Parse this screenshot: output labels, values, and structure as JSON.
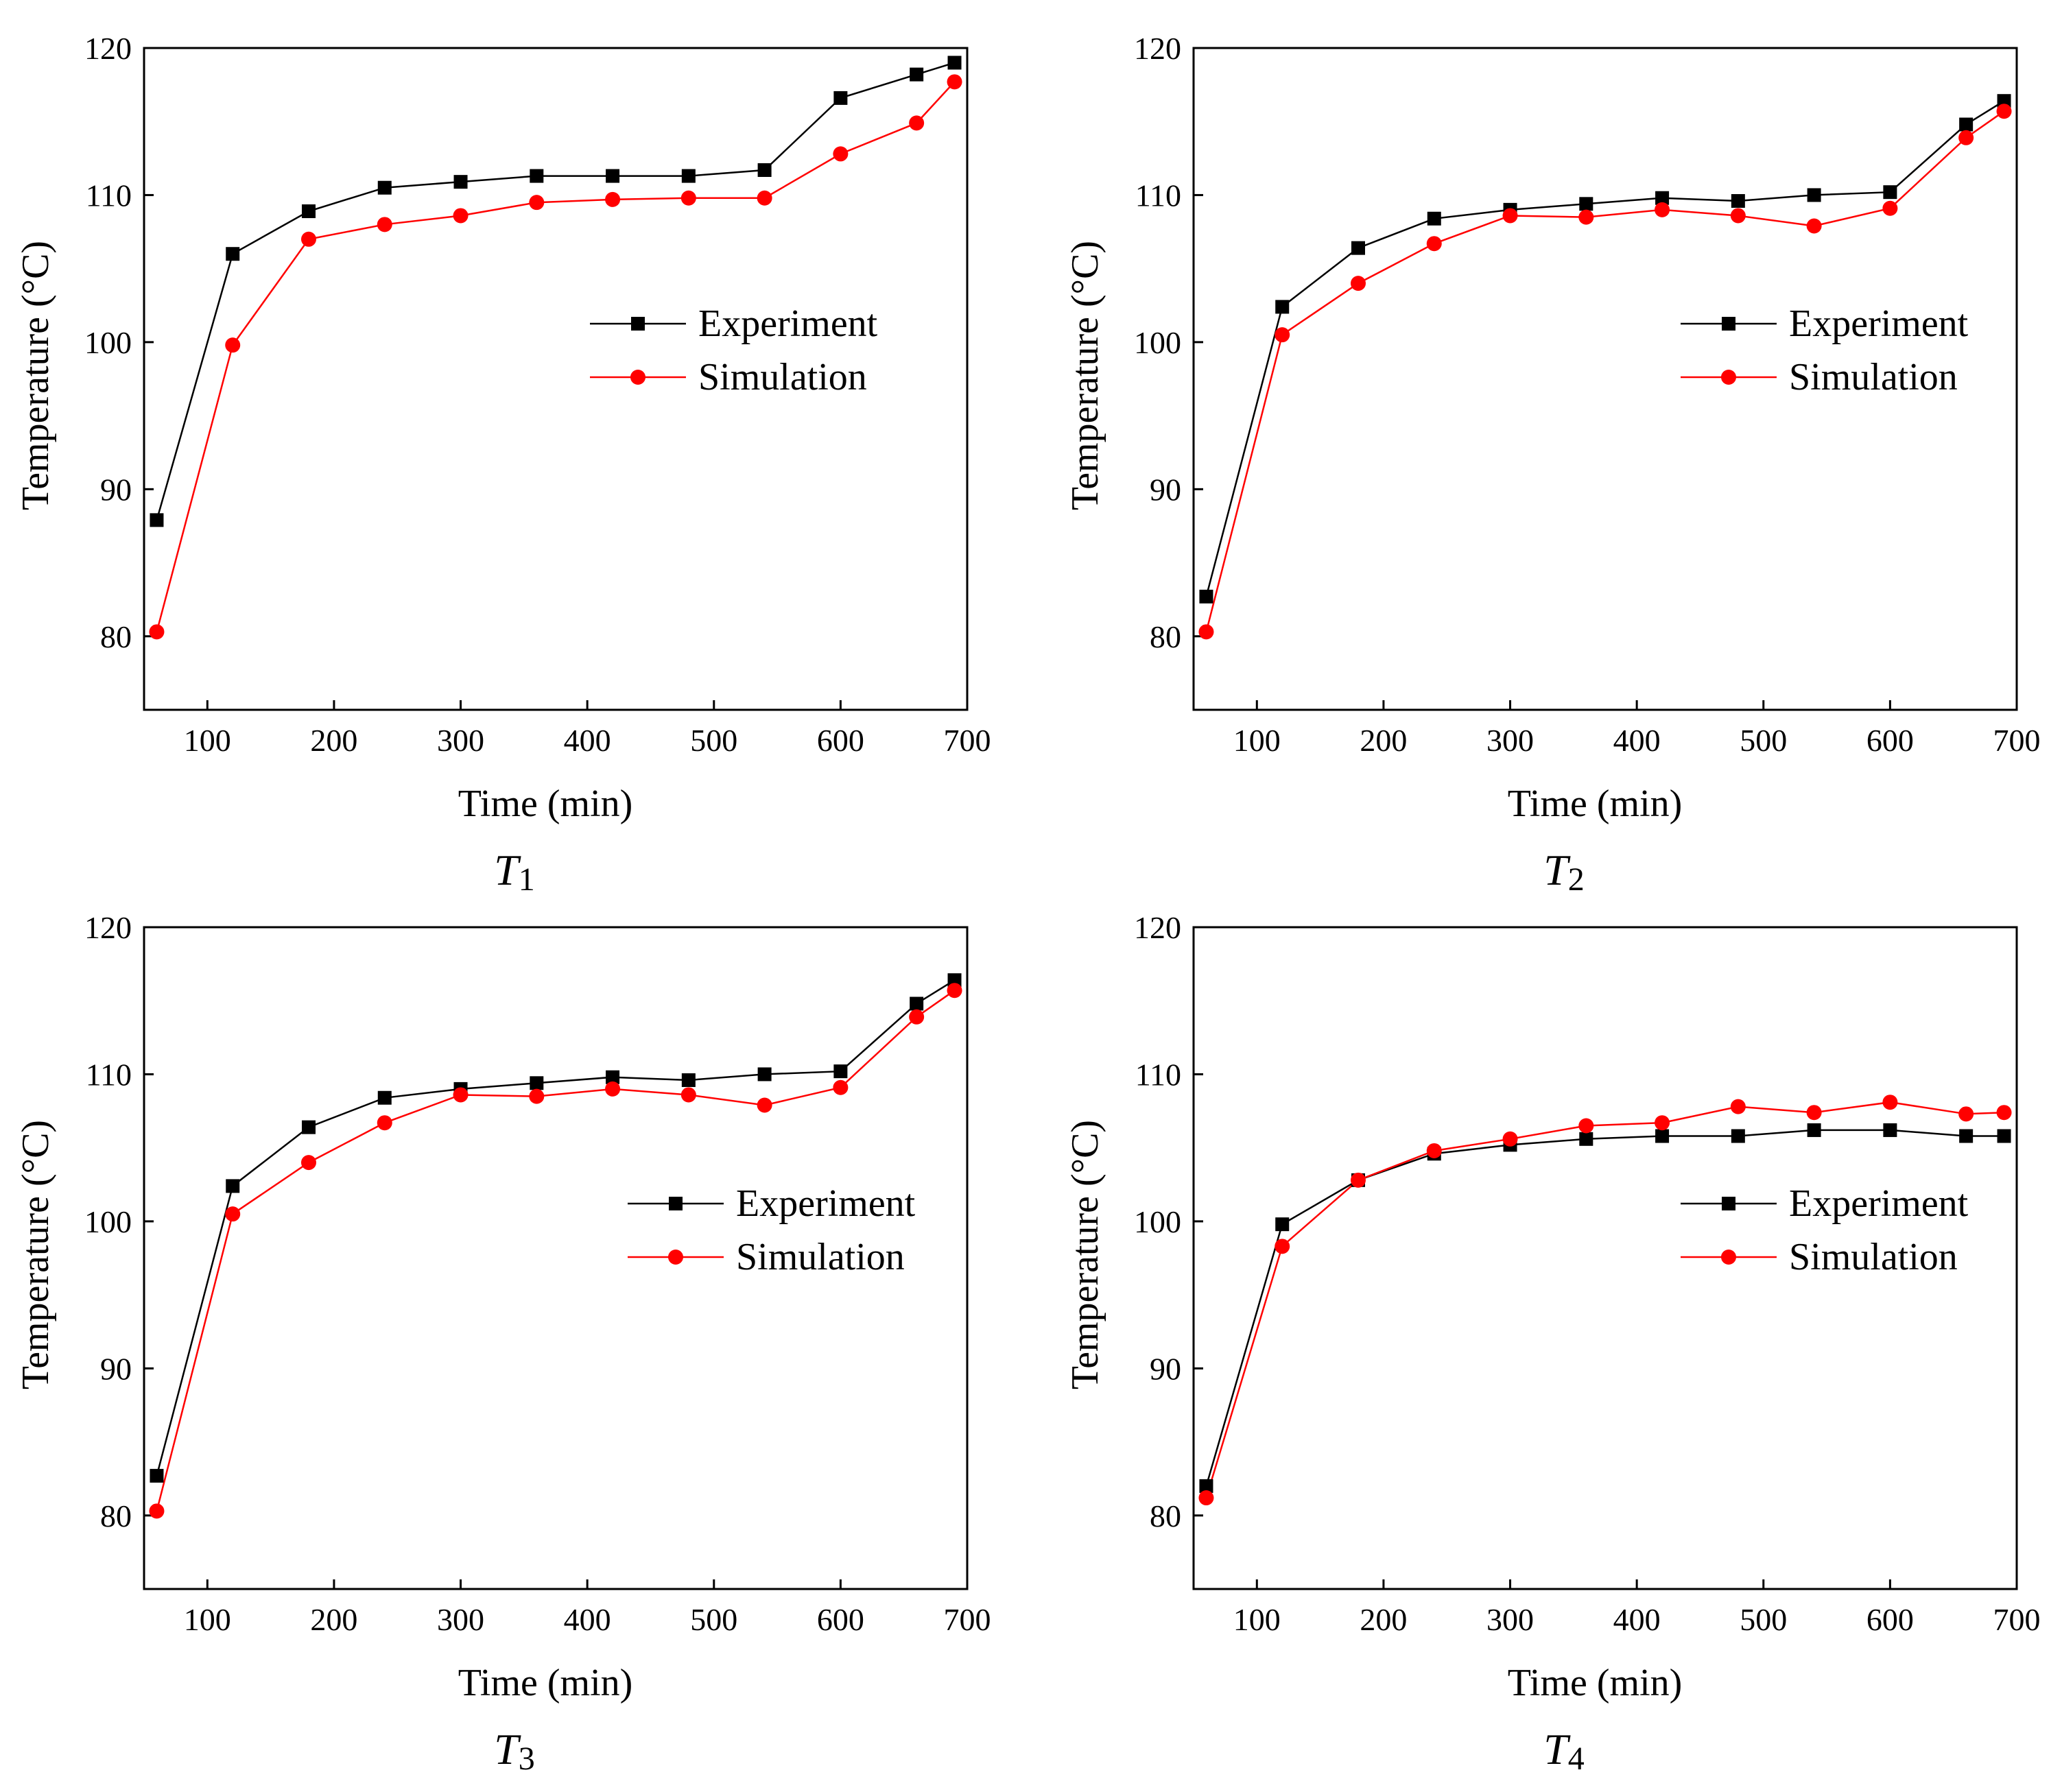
{
  "chart_data": [
    {
      "type": "line",
      "caption": {
        "letter": "T",
        "sub": "1"
      },
      "xlabel": "Time (min)",
      "ylabel": "Temperature (°C)",
      "xlim": [
        50,
        700
      ],
      "ylim": [
        75,
        120
      ],
      "xticks": [
        "100",
        "200",
        "300",
        "400",
        "500",
        "600",
        "700"
      ],
      "yticks": [
        "80",
        "90",
        "100",
        "110",
        "120"
      ],
      "legend_position": "center-right",
      "x": [
        60,
        120,
        180,
        240,
        300,
        360,
        420,
        480,
        540,
        600,
        660,
        690
      ],
      "series": [
        {
          "name": "Experiment",
          "color": "#000000",
          "marker": "square",
          "values": [
            87.9,
            106.0,
            108.9,
            110.5,
            110.9,
            111.3,
            111.3,
            111.3,
            111.7,
            116.6,
            118.2,
            119.0
          ]
        },
        {
          "name": "Simulation",
          "color": "#ff0000",
          "marker": "circle",
          "values": [
            80.3,
            99.8,
            107.0,
            108.0,
            108.6,
            109.5,
            109.7,
            109.8,
            109.8,
            112.8,
            114.9,
            117.7
          ]
        }
      ]
    },
    {
      "type": "line",
      "caption": {
        "letter": "T",
        "sub": "2"
      },
      "xlabel": "Time (min)",
      "ylabel": "Temperature (°C)",
      "xlim": [
        50,
        700
      ],
      "ylim": [
        75,
        120
      ],
      "xticks": [
        "100",
        "200",
        "300",
        "400",
        "500",
        "600",
        "700"
      ],
      "yticks": [
        "80",
        "90",
        "100",
        "110",
        "120"
      ],
      "legend_position": "center-right",
      "x": [
        60,
        120,
        180,
        240,
        300,
        360,
        420,
        480,
        540,
        600,
        660,
        690
      ],
      "series": [
        {
          "name": "Experiment",
          "color": "#000000",
          "marker": "square",
          "values": [
            82.7,
            102.4,
            106.4,
            108.4,
            109.0,
            109.4,
            109.8,
            109.6,
            110.0,
            110.2,
            114.8,
            116.4
          ]
        },
        {
          "name": "Simulation",
          "color": "#ff0000",
          "marker": "circle",
          "values": [
            80.3,
            100.5,
            104.0,
            106.7,
            108.6,
            108.5,
            109.0,
            108.6,
            107.9,
            109.1,
            113.9,
            115.7
          ]
        }
      ]
    },
    {
      "type": "line",
      "caption": {
        "letter": "T",
        "sub": "3"
      },
      "xlabel": "Time (min)",
      "ylabel": "Temperature (°C)",
      "xlim": [
        50,
        700
      ],
      "ylim": [
        75,
        120
      ],
      "xticks": [
        "100",
        "200",
        "300",
        "400",
        "500",
        "600",
        "700"
      ],
      "yticks": [
        "80",
        "90",
        "100",
        "110",
        "120"
      ],
      "legend_position": "center-right",
      "x": [
        60,
        120,
        180,
        240,
        300,
        360,
        420,
        480,
        540,
        600,
        660,
        690
      ],
      "series": [
        {
          "name": "Experiment",
          "color": "#000000",
          "marker": "square",
          "values": [
            82.7,
            102.4,
            106.4,
            108.4,
            109.0,
            109.4,
            109.8,
            109.6,
            110.0,
            110.2,
            114.8,
            116.4
          ]
        },
        {
          "name": "Simulation",
          "color": "#ff0000",
          "marker": "circle",
          "values": [
            80.3,
            100.5,
            104.0,
            106.7,
            108.6,
            108.5,
            109.0,
            108.6,
            107.9,
            109.1,
            113.9,
            115.7
          ]
        }
      ]
    },
    {
      "type": "line",
      "caption": {
        "letter": "T",
        "sub": "4"
      },
      "xlabel": "Time (min)",
      "ylabel": "Temperature (°C)",
      "xlim": [
        50,
        700
      ],
      "ylim": [
        75,
        120
      ],
      "xticks": [
        "100",
        "200",
        "300",
        "400",
        "500",
        "600",
        "700"
      ],
      "yticks": [
        "80",
        "90",
        "100",
        "110",
        "120"
      ],
      "legend_position": "center-right",
      "x": [
        60,
        120,
        180,
        240,
        300,
        360,
        420,
        480,
        540,
        600,
        660,
        690
      ],
      "series": [
        {
          "name": "Experiment",
          "color": "#000000",
          "marker": "square",
          "values": [
            82.0,
            99.8,
            102.8,
            104.6,
            105.2,
            105.6,
            105.8,
            105.8,
            106.2,
            106.2,
            105.8,
            105.8
          ]
        },
        {
          "name": "Simulation",
          "color": "#ff0000",
          "marker": "circle",
          "values": [
            81.2,
            98.3,
            102.8,
            104.8,
            105.6,
            106.5,
            106.7,
            107.8,
            107.4,
            108.1,
            107.3,
            107.4
          ]
        }
      ]
    }
  ]
}
